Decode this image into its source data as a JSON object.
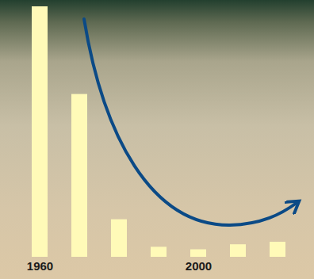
{
  "chart_data": {
    "type": "bar",
    "categories": [
      "1960",
      null,
      null,
      null,
      "2000",
      null,
      null
    ],
    "values": [
      100,
      65,
      15,
      4,
      3,
      5,
      6
    ],
    "color": "#fffab8",
    "ylim": [
      0,
      100
    ],
    "tick_labels": "x"
  }
}
